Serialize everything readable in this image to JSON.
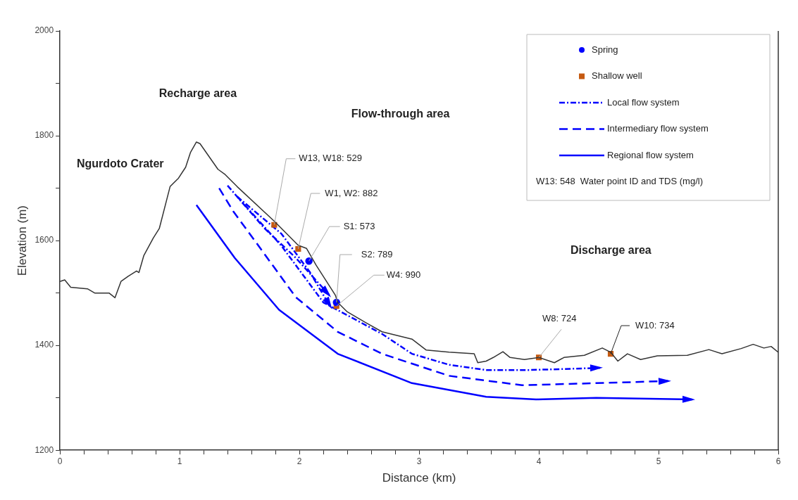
{
  "chart_data": {
    "type": "line",
    "xlabel": "Distance (km)",
    "ylabel": "Elevation (m)",
    "legend": "top right",
    "legend_title": "W13: 548  Water point ID and TDS (mg/l)",
    "grid": false,
    "xlim": [
      0,
      6
    ],
    "ylim": [
      1200,
      2000
    ],
    "xticks": [
      0,
      {
        "value": 0.2,
        "label": null
      },
      {
        "value": 0.4,
        "label": null
      },
      {
        "value": 0.6,
        "label": null
      },
      {
        "value": 0.8,
        "label": null
      },
      1,
      {
        "value": 1.2,
        "label": null
      },
      {
        "value": 1.4,
        "label": null
      },
      {
        "value": 1.6,
        "label": null
      },
      {
        "value": 1.8,
        "label": null
      },
      2,
      {
        "value": 2.2,
        "label": null
      },
      {
        "value": 2.4,
        "label": null
      },
      {
        "value": 2.6,
        "label": null
      },
      {
        "value": 2.8,
        "label": null
      },
      3,
      {
        "value": 3.2,
        "label": null
      },
      {
        "value": 3.4,
        "label": null
      },
      {
        "value": 3.6,
        "label": null
      },
      {
        "value": 3.8,
        "label": null
      },
      4,
      {
        "value": 4.2,
        "label": null
      },
      {
        "value": 4.4,
        "label": null
      },
      {
        "value": 4.6,
        "label": null
      },
      {
        "value": 4.8,
        "label": null
      },
      5,
      {
        "value": 5.2,
        "label": null
      },
      {
        "value": 5.4,
        "label": null
      },
      {
        "value": 5.6,
        "label": null
      },
      {
        "value": 5.8,
        "label": null
      },
      6
    ],
    "yticks": [
      1200,
      {
        "value": 1300,
        "label": null
      },
      1400,
      {
        "value": 1500,
        "label": null
      },
      1600,
      {
        "value": 1700,
        "label": null
      },
      1800,
      {
        "value": 1900,
        "label": null
      },
      2000
    ],
    "series": [
      {
        "color": "#333333",
        "marker": "none",
        "x": [
          0,
          0.04,
          0.09,
          0.23,
          0.29,
          0.41,
          0.46,
          0.51,
          0.57,
          0.64,
          0.66,
          0.7,
          0.78,
          0.83,
          0.92,
          0.99,
          1.05,
          1.09,
          1.14,
          1.17,
          1.32,
          1.38,
          1.48,
          1.79,
          1.99,
          2.06,
          2.14,
          2.3,
          2.32,
          2.4,
          2.55,
          2.69,
          2.94,
          3.06,
          3.25,
          3.46,
          3.49,
          3.56,
          3.62,
          3.7,
          3.76,
          3.88,
          4,
          4.13,
          4.21,
          4.38,
          4.53,
          4.6,
          4.66,
          4.74,
          4.85,
          4.99,
          5.24,
          5.42,
          5.53,
          5.69,
          5.79,
          5.88,
          5.94,
          6
        ],
        "values": [
          1522,
          1525,
          1511,
          1508,
          1500,
          1500,
          1491,
          1522,
          1532,
          1542,
          1539,
          1571,
          1605,
          1623,
          1703,
          1719,
          1740,
          1768,
          1788,
          1785,
          1736,
          1726,
          1703,
          1637,
          1591,
          1585,
          1553,
          1496,
          1482,
          1464,
          1444,
          1426,
          1412,
          1391,
          1387,
          1384,
          1367,
          1370,
          1377,
          1388,
          1377,
          1373,
          1377,
          1367,
          1377,
          1381,
          1395,
          1387,
          1370,
          1384,
          1373,
          1380,
          1381,
          1392,
          1384,
          1394,
          1402,
          1395,
          1398,
          1387
        ]
      },
      {
        "type": "scatter",
        "name": "Spring",
        "color": "#0000ff",
        "marker": "circle",
        "x": [
          2.08,
          2.31
        ],
        "values": [
          1561,
          1482
        ]
      },
      {
        "type": "scatter",
        "name": "Shallow well",
        "color": "#c55a11",
        "marker": "square",
        "x": [
          1.79,
          1.99,
          2.31,
          4,
          4.6
        ],
        "values": [
          1630,
          1584,
          1475,
          1377,
          1384
        ]
      },
      {
        "name": "Local flow system",
        "color": "#0000ff",
        "marker": "none",
        "line_style": "dotted",
        "x": [
          1.48,
          1.85,
          2.2,
          2.69,
          2.94,
          3.25,
          3.56,
          3.92,
          4.51
        ],
        "values": [
          1684,
          1590,
          1482,
          1422,
          1384,
          1363,
          1353,
          1353,
          1357
        ]
      },
      {
        "color": "#0000ff",
        "marker": "none",
        "line_style": "dotted",
        "x": [
          1.4,
          1.71,
          1.97,
          2.25
        ],
        "values": [
          1705,
          1623,
          1567,
          1496
        ]
      },
      {
        "color": "#0000ff",
        "marker": "none",
        "line_style": "dotted",
        "x": [
          1.48,
          1.85,
          2.09,
          2.26
        ],
        "values": [
          1684,
          1613,
          1539,
          1473
        ]
      },
      {
        "name": "Intermediary flow system",
        "color": "#0000ff",
        "marker": "none",
        "line_style": "dashed",
        "x": [
          1.33,
          1.45,
          1.63,
          1.97,
          2.32,
          2.69,
          3.25,
          3.86,
          4.48,
          5.08
        ],
        "values": [
          1700,
          1655,
          1599,
          1492,
          1426,
          1384,
          1342,
          1324,
          1328,
          1332
        ]
      },
      {
        "name": "Regional flow system",
        "color": "#0000ff",
        "marker": "none",
        "line_style": "solid",
        "x": [
          1.14,
          1.46,
          1.83,
          2.32,
          2.94,
          3.56,
          3.98,
          4.48,
          5.28
        ],
        "values": [
          1668,
          1567,
          1468,
          1384,
          1328,
          1302,
          1297,
          1300,
          1297
        ]
      }
    ],
    "annotations": [
      "Ngurdoto Crater",
      "Recharge area",
      "Flow-through area",
      "Discharge area",
      {
        "text": "W13, W18: 529",
        "x": 1.79,
        "y": 1630
      },
      {
        "text": "W1, W2: 882",
        "x": 1.99,
        "y": 1584
      },
      {
        "text": "S1: 573",
        "x": 2.08,
        "y": 1561
      },
      {
        "text": "S2: 789",
        "x": 2.31,
        "y": 1482
      },
      {
        "text": "W4: 990",
        "x": 2.31,
        "y": 1475
      },
      {
        "text": "W8: 724",
        "x": 4,
        "y": 1377
      },
      {
        "text": "W10: 734",
        "x": 4.6,
        "y": 1384
      }
    ]
  }
}
